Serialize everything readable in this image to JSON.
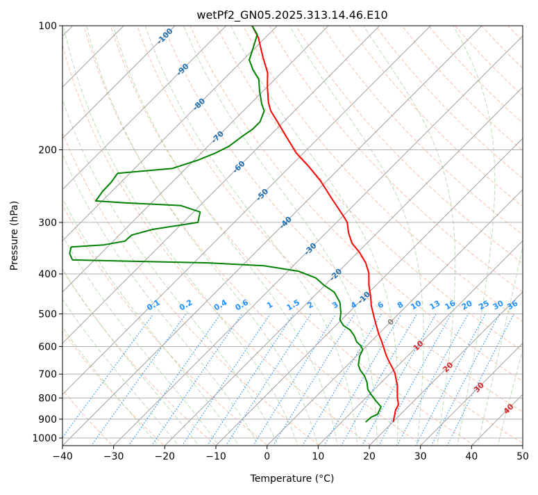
{
  "chart_data": {
    "type": "line",
    "subtype": "skew-t log-p",
    "title": "wetPf2_GN05.2025.313.14.46.E10",
    "xlabel": "Temperature (°C)",
    "ylabel": "Pressure (hPa)",
    "xlim": [
      -40,
      50
    ],
    "ylim": [
      1050,
      100
    ],
    "xticks": [
      "−40",
      "−30",
      "−20",
      "−10",
      "0",
      "10",
      "20",
      "30",
      "40",
      "50"
    ],
    "xtick_values": [
      -40,
      -30,
      -20,
      -10,
      0,
      10,
      20,
      30,
      40,
      50
    ],
    "yticks": [
      "100",
      "200",
      "300",
      "400",
      "500",
      "600",
      "700",
      "800",
      "900",
      "1000"
    ],
    "ytick_values": [
      100,
      200,
      300,
      400,
      500,
      600,
      700,
      800,
      900,
      1000
    ],
    "grid": true,
    "series": [
      {
        "name": "Temperature",
        "color": "#ff0000",
        "points": [
          [
            100,
            -84.9
          ],
          [
            107,
            -81.3
          ],
          [
            118,
            -77.1
          ],
          [
            125,
            -74.5
          ],
          [
            130,
            -72.7
          ],
          [
            141,
            -69.9
          ],
          [
            154,
            -66.6
          ],
          [
            161,
            -64.6
          ],
          [
            171,
            -61.2
          ],
          [
            185,
            -56.8
          ],
          [
            204,
            -51.3
          ],
          [
            220,
            -46.2
          ],
          [
            238,
            -41.2
          ],
          [
            262,
            -35.7
          ],
          [
            289,
            -30.0
          ],
          [
            300,
            -27.9
          ],
          [
            318,
            -25.6
          ],
          [
            337,
            -22.9
          ],
          [
            355,
            -19.6
          ],
          [
            376,
            -16.4
          ],
          [
            398,
            -13.8
          ],
          [
            426,
            -11.4
          ],
          [
            451,
            -9.1
          ],
          [
            478,
            -6.9
          ],
          [
            517,
            -3.5
          ],
          [
            559,
            0.0
          ],
          [
            581,
            1.9
          ],
          [
            604,
            3.7
          ],
          [
            628,
            5.5
          ],
          [
            652,
            7.4
          ],
          [
            678,
            9.5
          ],
          [
            697,
            10.9
          ],
          [
            747,
            13.8
          ],
          [
            798,
            16.1
          ],
          [
            830,
            17.7
          ],
          [
            856,
            18.2
          ],
          [
            890,
            19.3
          ],
          [
            915,
            20.1
          ]
        ]
      },
      {
        "name": "Dewpoint",
        "color": "#008000",
        "points": [
          [
            100,
            -84.9
          ],
          [
            105,
            -82.2
          ],
          [
            114,
            -80.2
          ],
          [
            121,
            -78.8
          ],
          [
            128,
            -76.1
          ],
          [
            135,
            -73.1
          ],
          [
            144,
            -70.7
          ],
          [
            155,
            -67.7
          ],
          [
            161,
            -65.9
          ],
          [
            171,
            -64.6
          ],
          [
            178,
            -64.6
          ],
          [
            185,
            -65.2
          ],
          [
            196,
            -65.9
          ],
          [
            204,
            -67.3
          ],
          [
            212,
            -69.3
          ],
          [
            222,
            -72.7
          ],
          [
            228,
            -82.4
          ],
          [
            240,
            -81.9
          ],
          [
            252,
            -81.8
          ],
          [
            266,
            -81.3
          ],
          [
            269,
            -75.2
          ],
          [
            273,
            -63.8
          ],
          [
            283,
            -58.7
          ],
          [
            300,
            -57.1
          ],
          [
            312,
            -64.6
          ],
          [
            322,
            -67.6
          ],
          [
            333,
            -67.7
          ],
          [
            340,
            -71.1
          ],
          [
            344,
            -77.1
          ],
          [
            357,
            -76.1
          ],
          [
            370,
            -74.3
          ],
          [
            373,
            -61.0
          ],
          [
            376,
            -47.2
          ],
          [
            382,
            -35.8
          ],
          [
            394,
            -27.9
          ],
          [
            409,
            -23.2
          ],
          [
            426,
            -20.2
          ],
          [
            443,
            -16.8
          ],
          [
            469,
            -13.7
          ],
          [
            497,
            -11.5
          ],
          [
            517,
            -10.3
          ],
          [
            533,
            -8.6
          ],
          [
            548,
            -6.2
          ],
          [
            565,
            -4.4
          ],
          [
            585,
            -2.7
          ],
          [
            597,
            -1.2
          ],
          [
            611,
            0.0
          ],
          [
            632,
            0.6
          ],
          [
            665,
            2.1
          ],
          [
            686,
            3.6
          ],
          [
            705,
            5.3
          ],
          [
            733,
            7.2
          ],
          [
            762,
            8.7
          ],
          [
            786,
            10.5
          ],
          [
            811,
            12.4
          ],
          [
            840,
            14.7
          ],
          [
            876,
            15.5
          ],
          [
            890,
            14.8
          ],
          [
            915,
            14.7
          ]
        ]
      }
    ],
    "isotherm_labels": [
      {
        "value": -100,
        "text": "-100",
        "color": "#1f6fb0"
      },
      {
        "value": -90,
        "text": "-90",
        "color": "#1f6fb0"
      },
      {
        "value": -80,
        "text": "-80",
        "color": "#1f6fb0"
      },
      {
        "value": -70,
        "text": "-70",
        "color": "#1f6fb0"
      },
      {
        "value": -60,
        "text": "-60",
        "color": "#1f6fb0"
      },
      {
        "value": -50,
        "text": "-50",
        "color": "#1f6fb0"
      },
      {
        "value": -40,
        "text": "-40",
        "color": "#1f6fb0"
      },
      {
        "value": -30,
        "text": "-30",
        "color": "#1f6fb0"
      },
      {
        "value": -20,
        "text": "-20",
        "color": "#1f6fb0"
      },
      {
        "value": -10,
        "text": "-10",
        "color": "#1f6fb0"
      },
      {
        "value": 0,
        "text": "0",
        "color": "#808080"
      },
      {
        "value": 10,
        "text": "10",
        "color": "#d62728"
      },
      {
        "value": 20,
        "text": "20",
        "color": "#d62728"
      },
      {
        "value": 30,
        "text": "30",
        "color": "#d62728"
      },
      {
        "value": 40,
        "text": "40",
        "color": "#d62728"
      }
    ],
    "mixing_ratio_labels": [
      "0.1",
      "0.2",
      "0.4",
      "0.6",
      "1",
      "1.5",
      "2",
      "3",
      "4",
      "6",
      "8",
      "10",
      "13",
      "16",
      "20",
      "25",
      "30",
      "36"
    ],
    "mixing_ratio_values": [
      0.1,
      0.2,
      0.4,
      0.6,
      1,
      1.5,
      2,
      3,
      4,
      6,
      8,
      10,
      13,
      16,
      20,
      25,
      30,
      36
    ],
    "colors": {
      "isotherm": "#a0a0a0",
      "dry_adiabat": "#f4a582",
      "moist_adiabat": "#a8d5a0",
      "mixing_ratio": "#1e90ff"
    }
  }
}
